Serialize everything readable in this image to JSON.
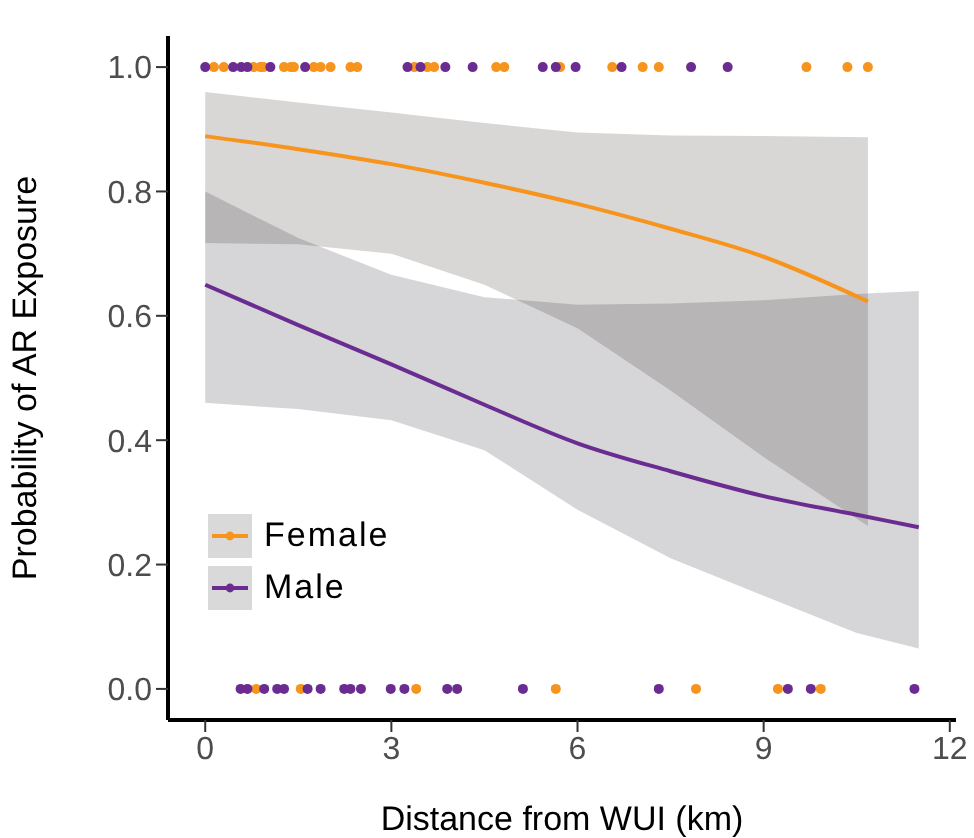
{
  "chart_data": {
    "type": "line",
    "xlabel": "Distance from WUI (km)",
    "ylabel": "Probability of AR Exposure",
    "xlim": [
      -0.6,
      12.1
    ],
    "xticks": [
      0,
      3,
      6,
      9,
      12
    ],
    "ylim": [
      -0.05,
      1.05
    ],
    "yticks": [
      {
        "value": 0,
        "label": "0.0"
      },
      {
        "value": 0.2,
        "label": "0.2"
      },
      {
        "value": 0.4,
        "label": "0.4"
      },
      {
        "value": 0.6,
        "label": "0.6"
      },
      {
        "value": 0.8,
        "label": "0.8"
      },
      {
        "value": 1,
        "label": "1.0"
      }
    ],
    "grid": false,
    "legend": "bottom left",
    "series": [
      {
        "name": "Female",
        "color": "#f7941d",
        "x": [
          0,
          1.5,
          3,
          4.5,
          6,
          7.5,
          9,
          10.68
        ],
        "values": [
          0.889,
          0.868,
          0.844,
          0.814,
          0.78,
          0.74,
          0.695,
          0.623
        ],
        "lower": [
          0.717,
          0.715,
          0.7,
          0.65,
          0.58,
          0.48,
          0.373,
          0.262
        ],
        "upper": [
          0.96,
          0.943,
          0.927,
          0.91,
          0.895,
          0.89,
          0.889,
          0.887
        ]
      },
      {
        "name": "Male",
        "color": "#6a2c91",
        "x": [
          0,
          1.5,
          3,
          4.5,
          6,
          7.5,
          9,
          10.5,
          11.5
        ],
        "values": [
          0.65,
          0.585,
          0.522,
          0.457,
          0.395,
          0.35,
          0.31,
          0.28,
          0.26
        ],
        "lower": [
          0.46,
          0.45,
          0.432,
          0.384,
          0.288,
          0.21,
          0.15,
          0.09,
          0.065
        ],
        "upper": [
          0.8,
          0.725,
          0.666,
          0.63,
          0.618,
          0.62,
          0.625,
          0.635,
          0.64
        ]
      },
      {
        "type": "scatter",
        "color": "#f7941d",
        "marker": "circle",
        "x": [
          0.14,
          0.3,
          0.78,
          0.89,
          0.94,
          1.27,
          1.38,
          1.43,
          1.75,
          1.86,
          2.02,
          2.34,
          2.45,
          3.37,
          3.58,
          3.69,
          4.69,
          4.82,
          5.72,
          6.56,
          7.05,
          7.31,
          9.69,
          10.35,
          10.68,
          0.82,
          1.54,
          3.4,
          5.65,
          7.91,
          9.23,
          9.92
        ],
        "values": [
          1,
          1,
          1,
          1,
          1,
          1,
          1,
          1,
          1,
          1,
          1,
          1,
          1,
          1,
          1,
          1,
          1,
          1,
          1,
          1,
          1,
          1,
          1,
          1,
          1,
          0,
          0,
          0,
          0,
          0,
          0,
          0
        ]
      },
      {
        "type": "scatter",
        "color": "#6a2c91",
        "marker": "circle",
        "x": [
          0,
          0.45,
          0.58,
          0.68,
          1.05,
          1.61,
          3.26,
          3.47,
          3.87,
          4.31,
          5.44,
          5.65,
          5.97,
          6.71,
          7.83,
          8.42,
          0.57,
          0.68,
          0.95,
          1.16,
          1.27,
          1.65,
          1.86,
          2.24,
          2.34,
          2.51,
          2.99,
          3.21,
          3.9,
          4.06,
          5.12,
          7.31,
          9.39,
          9.76,
          11.43
        ],
        "values": [
          1,
          1,
          1,
          1,
          1,
          1,
          1,
          1,
          1,
          1,
          1,
          1,
          1,
          1,
          1,
          1,
          0,
          0,
          0,
          0,
          0,
          0,
          0,
          0,
          0,
          0,
          0,
          0,
          0,
          0,
          0,
          0,
          0,
          0,
          0
        ]
      }
    ]
  }
}
